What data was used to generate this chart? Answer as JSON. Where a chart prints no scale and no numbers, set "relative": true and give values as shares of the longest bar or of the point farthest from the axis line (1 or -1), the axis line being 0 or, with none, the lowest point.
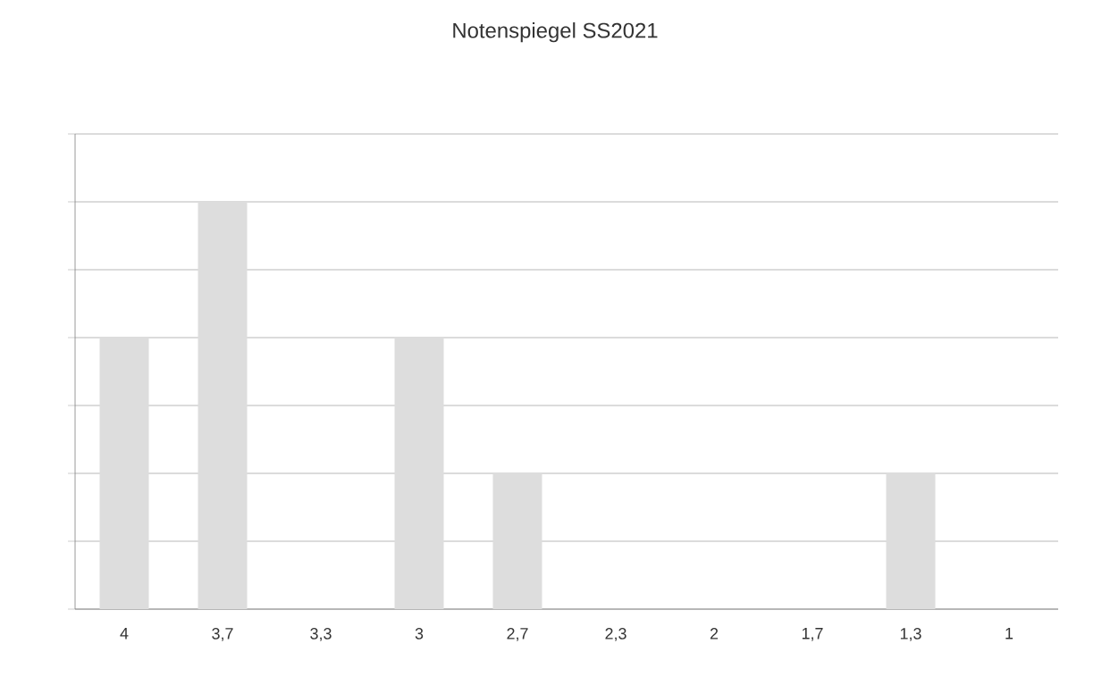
{
  "chart_data": {
    "type": "bar",
    "title": "Notenspiegel SS2021",
    "categories": [
      "4",
      "3,7",
      "3,3",
      "3",
      "2,7",
      "2,3",
      "2",
      "1,7",
      "1,3",
      "1"
    ],
    "values": [
      0.6667,
      1,
      0,
      0.6667,
      0.3333,
      0,
      0,
      0,
      0.3333,
      0
    ],
    "color": "#dddddd",
    "relative": true,
    "grid": "y"
  }
}
